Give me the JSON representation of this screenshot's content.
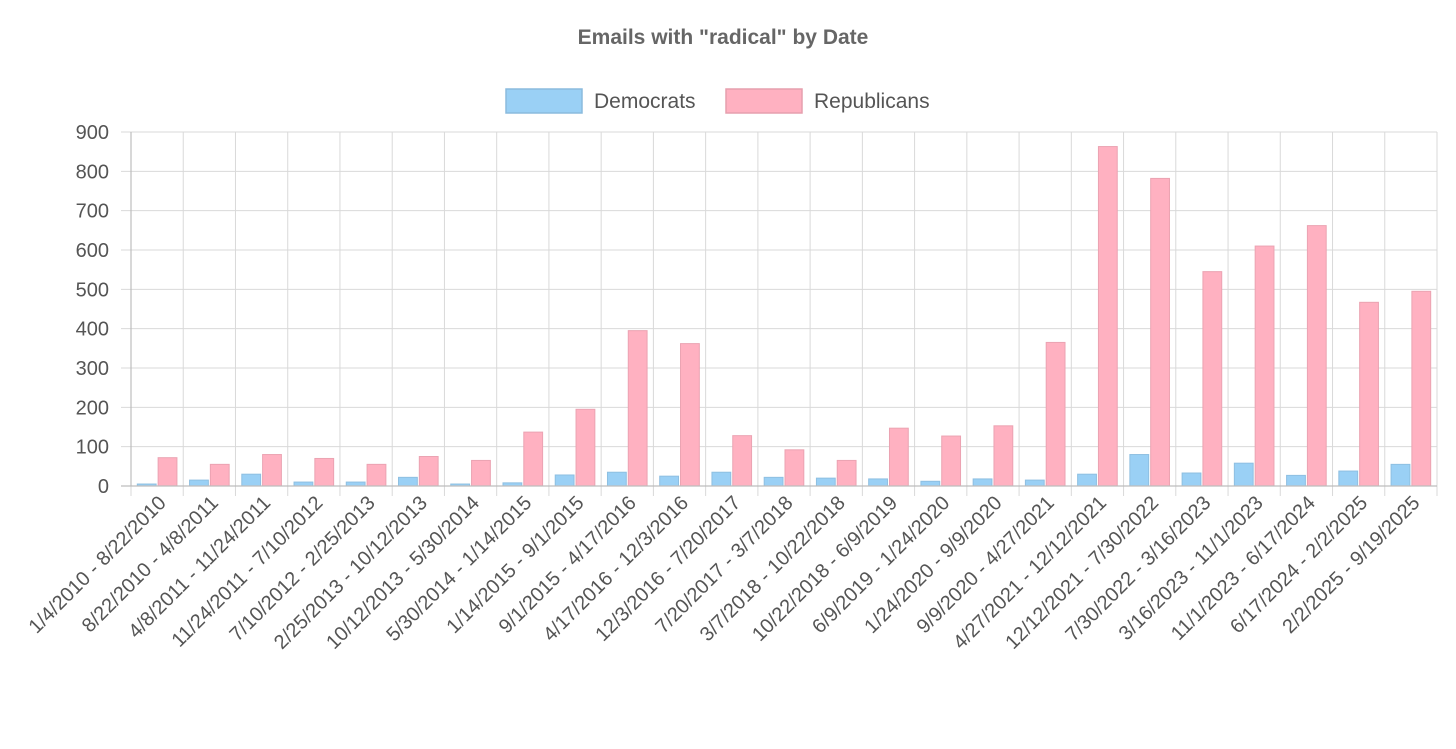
{
  "chart_data": {
    "type": "bar",
    "title": "Emails with \"radical\" by Date",
    "legend_position": "top-center",
    "grid": true,
    "ylim": [
      0,
      900
    ],
    "y_ticks": [
      0,
      100,
      200,
      300,
      400,
      500,
      600,
      700,
      800,
      900
    ],
    "categories": [
      "1/4/2010 - 8/22/2010",
      "8/22/2010 - 4/8/2011",
      "4/8/2011 - 11/24/2011",
      "11/24/2011 - 7/10/2012",
      "7/10/2012 - 2/25/2013",
      "2/25/2013 - 10/12/2013",
      "10/12/2013 - 5/30/2014",
      "5/30/2014 - 1/14/2015",
      "1/14/2015 - 9/1/2015",
      "9/1/2015 - 4/17/2016",
      "4/17/2016 - 12/3/2016",
      "12/3/2016 - 7/20/2017",
      "7/20/2017 - 3/7/2018",
      "3/7/2018 - 10/22/2018",
      "10/22/2018 - 6/9/2019",
      "6/9/2019 - 1/24/2020",
      "1/24/2020 - 9/9/2020",
      "9/9/2020 - 4/27/2021",
      "4/27/2021 - 12/12/2021",
      "12/12/2021 - 7/30/2022",
      "7/30/2022 - 3/16/2023",
      "3/16/2023 - 11/1/2023",
      "11/1/2023 - 6/17/2024",
      "6/17/2024 - 2/2/2025",
      "2/2/2025 - 9/19/2025"
    ],
    "series": [
      {
        "name": "Democrats",
        "color": "#9ad0f5",
        "values": [
          5,
          15,
          30,
          10,
          10,
          22,
          5,
          8,
          28,
          35,
          25,
          35,
          22,
          20,
          18,
          12,
          18,
          15,
          30,
          80,
          33,
          58,
          27,
          38,
          55
        ]
      },
      {
        "name": "Republicans",
        "color": "#ffb1c1",
        "values": [
          72,
          55,
          80,
          70,
          55,
          75,
          65,
          137,
          195,
          395,
          362,
          128,
          92,
          65,
          147,
          127,
          153,
          365,
          863,
          782,
          545,
          610,
          662,
          467,
          495
        ]
      }
    ]
  }
}
